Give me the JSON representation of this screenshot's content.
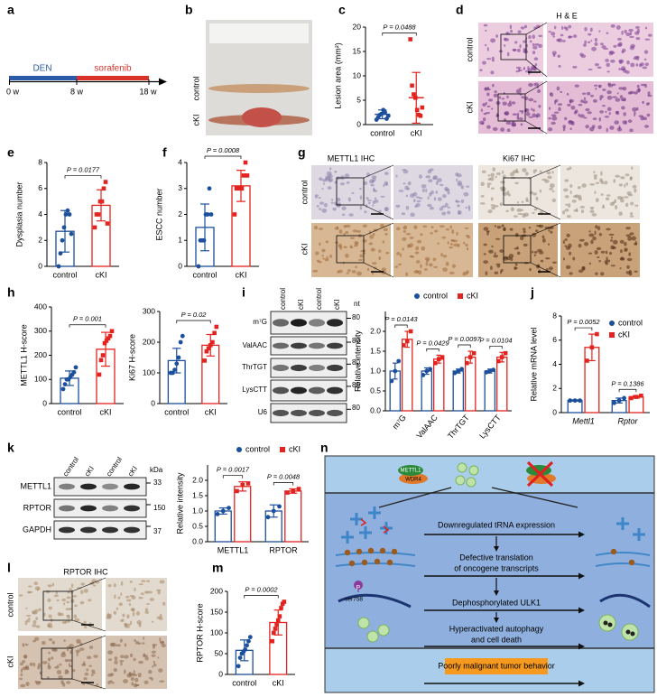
{
  "figure": {
    "panel_labels": [
      "a",
      "b",
      "c",
      "d",
      "e",
      "f",
      "g",
      "h",
      "i",
      "j",
      "k",
      "l",
      "m",
      "n"
    ],
    "a": {
      "den": "DEN",
      "sorafenib": "sorafenib",
      "ticks": [
        "0 w",
        "8 w",
        "18 w"
      ]
    },
    "b": {
      "rows": [
        "control",
        "cKI"
      ]
    },
    "d": {
      "title": "H & E",
      "rows": [
        "control",
        "cKI"
      ]
    },
    "g": {
      "titles": [
        "METTL1 IHC",
        "Ki67 IHC"
      ],
      "rows": [
        "control",
        "cKI"
      ]
    },
    "i": {
      "lanes": [
        "control",
        "cKI",
        "control",
        "cKI"
      ],
      "unit": "nt",
      "rows": [
        "m⁷G",
        "ValAAC",
        "ThrTGT",
        "LysCTT",
        "U6"
      ],
      "markers": [
        "80",
        "80",
        "80",
        "80",
        "80"
      ]
    },
    "k": {
      "lanes": [
        "control",
        "cKI",
        "control",
        "cKI"
      ],
      "unit": "kDa",
      "rows": [
        "METTL1",
        "RPTOR",
        "GAPDH"
      ],
      "markers": [
        "33",
        "150",
        "37"
      ]
    },
    "l": {
      "title": "RPTOR IHC",
      "rows": [
        "control",
        "cKI"
      ]
    },
    "n": {
      "complex": [
        "METTL1",
        "WDR4"
      ],
      "steps": [
        [
          "Downregulated tRNA expression"
        ],
        [
          "Defective translation",
          "of oncogene transcripts"
        ],
        [
          "Dephosphorylated ULK1"
        ],
        [
          "Hyperactivated autophagy",
          "and cell death"
        ]
      ],
      "phospho": "P",
      "site": "ser758",
      "outcome": "Poorly malignant tumor behavior"
    }
  },
  "chart_data": [
    {
      "type": "dot",
      "ylabel": "Lesion area (mm²)",
      "categories": [
        "control",
        "cKI"
      ],
      "colors": [
        "#1c4f9c",
        "#e3231f"
      ],
      "values": [
        2.1,
        5.5
      ],
      "errors": [
        0.9,
        5.2
      ],
      "points": [
        [
          1.0,
          1.5,
          2.0,
          2.2,
          3.0,
          2.5,
          1.2,
          1.8
        ],
        [
          17.5,
          8.0,
          6.2,
          5.5,
          3.0,
          2.0,
          1.8,
          3.5
        ]
      ],
      "ylim": [
        0,
        20
      ],
      "yticks": [
        0,
        5,
        10,
        15,
        20
      ],
      "pvalues": [
        "P = 0.0488"
      ]
    },
    {
      "type": "bar",
      "ylabel": "Dysplasia number",
      "categories": [
        "control",
        "cKI"
      ],
      "colors": [
        "#1c4f9c",
        "#e3231f"
      ],
      "values": [
        2.7,
        4.7
      ],
      "errors": [
        1.6,
        1.2
      ],
      "points": [
        [
          0,
          1,
          2,
          3,
          4,
          4.3,
          4,
          2.5
        ],
        [
          3,
          4,
          4,
          5,
          5,
          6,
          6.5,
          3.3
        ]
      ],
      "ylim": [
        0,
        8
      ],
      "yticks": [
        0,
        2,
        4,
        6,
        8
      ],
      "pvalues": [
        "P = 0.0177"
      ]
    },
    {
      "type": "bar",
      "ylabel": "ESCC number",
      "categories": [
        "control",
        "cKI"
      ],
      "colors": [
        "#1c4f9c",
        "#e3231f"
      ],
      "values": [
        1.5,
        3.1
      ],
      "errors": [
        0.9,
        0.6
      ],
      "points": [
        [
          0,
          1,
          1,
          1,
          2,
          2,
          3,
          2
        ],
        [
          2,
          3,
          3,
          3,
          3,
          3.5,
          4,
          3.5
        ]
      ],
      "ylim": [
        0,
        4
      ],
      "yticks": [
        0,
        1,
        2,
        3,
        4
      ],
      "pvalues": [
        "P = 0.0008"
      ]
    },
    {
      "type": "bar",
      "ylabel": "METTL1 H-score",
      "categories": [
        "control",
        "cKI"
      ],
      "colors": [
        "#1c4f9c",
        "#e3231f"
      ],
      "values": [
        105,
        225
      ],
      "errors": [
        30,
        70
      ],
      "points": [
        [
          60,
          80,
          100,
          100,
          110,
          120,
          130,
          150
        ],
        [
          120,
          180,
          200,
          250,
          260,
          270,
          280,
          300
        ]
      ],
      "ylim": [
        0,
        400
      ],
      "yticks": [
        0,
        100,
        200,
        300,
        400
      ],
      "pvalues": [
        "P = 0.001"
      ]
    },
    {
      "type": "bar",
      "ylabel": "Ki67 H-score",
      "categories": [
        "control",
        "cKI"
      ],
      "colors": [
        "#1c4f9c",
        "#e3231f"
      ],
      "values": [
        140,
        190
      ],
      "errors": [
        40,
        35
      ],
      "points": [
        [
          100,
          100,
          110,
          130,
          150,
          200,
          220
        ],
        [
          140,
          170,
          180,
          190,
          200,
          230,
          250
        ]
      ],
      "ylim": [
        0,
        300
      ],
      "yticks": [
        0,
        100,
        200,
        300
      ],
      "pvalues": [
        "P = 0.02"
      ]
    },
    {
      "type": "bar",
      "ylabel": "Relative intensity",
      "categories": [
        "m⁷G",
        "ValAAC",
        "ThrTGT",
        "LysCTT"
      ],
      "legend": "top",
      "series": [
        {
          "name": "control",
          "color": "#1c4f9c",
          "values": [
            1,
            1,
            1,
            1
          ],
          "errors": [
            0.2,
            0.08,
            0.05,
            0.05
          ],
          "points": [
            [
              0.75,
              1.0,
              1.25
            ],
            [
              0.9,
              1.0,
              1.05
            ],
            [
              0.95,
              1.0,
              1.05
            ],
            [
              0.97,
              1.0,
              1.03
            ]
          ]
        },
        {
          "name": "cKI",
          "color": "#e3231f",
          "values": [
            1.8,
            1.3,
            1.35,
            1.35
          ],
          "errors": [
            0.2,
            0.1,
            0.15,
            0.12
          ],
          "points": [
            [
              1.65,
              1.75,
              2.0
            ],
            [
              1.2,
              1.3,
              1.35
            ],
            [
              1.2,
              1.35,
              1.45
            ],
            [
              1.25,
              1.35,
              1.45
            ]
          ]
        }
      ],
      "ylim": [
        0,
        2.5
      ],
      "yticks": [
        {
          "value": 0,
          "label": "0.0"
        },
        0.5,
        {
          "value": 1,
          "label": "1.0"
        },
        1.5,
        {
          "value": 2,
          "label": "2.0"
        }
      ],
      "pvalues": [
        "P = 0.0143",
        "P = 0.0429",
        "P = 0.0097",
        "P = 0.0104"
      ]
    },
    {
      "type": "bar",
      "ylabel": "Relative mRNA level",
      "categories": [
        "Mettl1",
        "Rptor"
      ],
      "legend": "top-right",
      "series": [
        {
          "name": "control",
          "color": "#1c4f9c",
          "values": [
            1,
            1
          ],
          "errors": [
            0.05,
            0.2
          ],
          "points": [
            [
              1,
              1,
              1
            ],
            [
              0.8,
              1,
              1.2
            ]
          ]
        },
        {
          "name": "cKI",
          "color": "#e3231f",
          "values": [
            5.4,
            1.3
          ],
          "errors": [
            1.1,
            0.1
          ],
          "points": [
            [
              4.3,
              5.4,
              6.5
            ],
            [
              1.2,
              1.3,
              1.4
            ]
          ]
        }
      ],
      "ylim": [
        0,
        8
      ],
      "yticks": [
        0,
        2,
        4,
        6,
        8
      ],
      "pvalues": [
        "P = 0.0052",
        "P = 0.1386"
      ]
    },
    {
      "type": "bar",
      "ylabel": "Relative intensity",
      "categories": [
        "METTL1",
        "RPTOR"
      ],
      "legend": "top",
      "series": [
        {
          "name": "control",
          "color": "#1c4f9c",
          "values": [
            1,
            1
          ],
          "errors": [
            0.1,
            0.2
          ],
          "points": [
            [
              0.9,
              1,
              1.1
            ],
            [
              0.8,
              1,
              1.15
            ]
          ]
        },
        {
          "name": "cKI",
          "color": "#e3231f",
          "values": [
            1.8,
            1.65
          ],
          "errors": [
            0.15,
            0.07
          ],
          "points": [
            [
              1.65,
              1.85,
              1.9
            ],
            [
              1.6,
              1.65,
              1.72
            ]
          ]
        }
      ],
      "ylim": [
        0,
        2.5
      ],
      "yticks": [
        {
          "value": 0,
          "label": "0.0"
        },
        0.5,
        {
          "value": 1,
          "label": "1.0"
        },
        1.5,
        {
          "value": 2,
          "label": "2.0"
        }
      ],
      "pvalues": [
        "P = 0.0017",
        "P = 0.0048"
      ]
    },
    {
      "type": "bar",
      "ylabel": "RPTOR H-score",
      "categories": [
        "control",
        "cKI"
      ],
      "colors": [
        "#1c4f9c",
        "#e3231f"
      ],
      "values": [
        58,
        125
      ],
      "errors": [
        25,
        30
      ],
      "points": [
        [
          20,
          40,
          50,
          55,
          60,
          70,
          80,
          90
        ],
        [
          80,
          100,
          110,
          120,
          130,
          140,
          160,
          170,
          175
        ]
      ],
      "ylim": [
        0,
        200
      ],
      "yticks": [
        0,
        50,
        100,
        150,
        200
      ],
      "pvalues": [
        "P = 0.0002"
      ]
    }
  ]
}
